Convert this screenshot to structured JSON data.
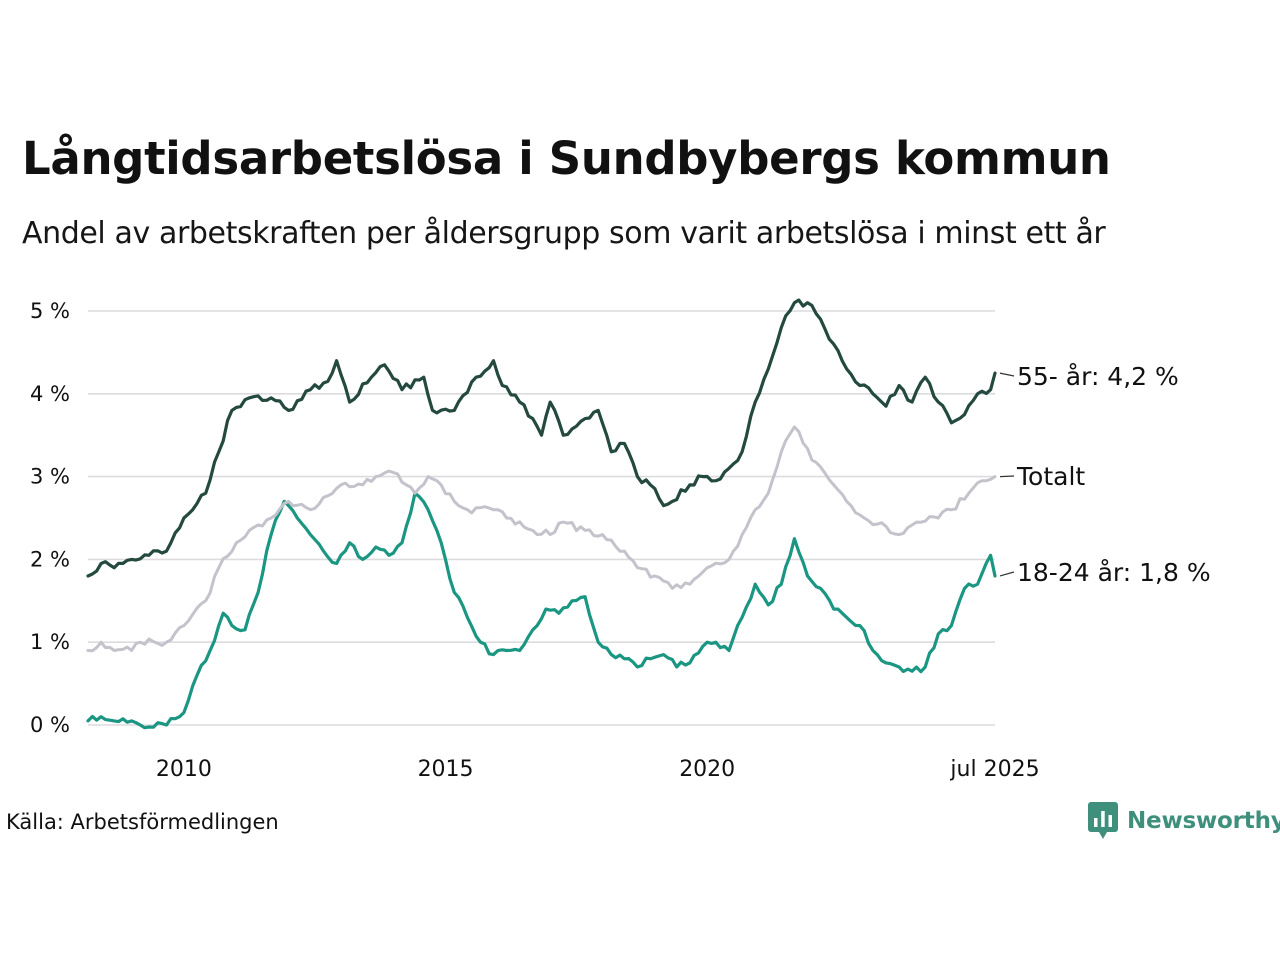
{
  "title": "Långtidsarbetslösa i Sundbybergs kommun",
  "subtitle": "Andel av arbetskraften per åldersgrupp som varit arbetslösa i minst ett år",
  "source": "Källa: Arbetsförmedlingen",
  "brand": {
    "name": "Newsworthy",
    "color": "#3f8f7d"
  },
  "chart_data": {
    "type": "line",
    "title": "Långtidsarbetslösa i Sundbybergs kommun",
    "subtitle": "Andel av arbetskraften per åldersgrupp som varit arbetslösa i minst ett år",
    "xlabel": "",
    "ylabel": "",
    "x_range": [
      "2008-03",
      "2025-07"
    ],
    "ylim": [
      0,
      5.2
    ],
    "y_ticks": [
      0,
      1,
      2,
      3,
      4,
      5
    ],
    "y_tick_labels": [
      "0 %",
      "1 %",
      "2 %",
      "3 %",
      "4 %",
      "5 %"
    ],
    "x_ticks": [
      "2010-01",
      "2015-01",
      "2020-01",
      "2025-07"
    ],
    "x_tick_labels": [
      "2010",
      "2015",
      "2020",
      "jul 2025"
    ],
    "grid": "horizontal",
    "legend": "direct labels at line ends (right)",
    "series": [
      {
        "name": "55- år",
        "end_label": "55- år: 4,2 %",
        "color": "#24493f",
        "points": [
          [
            "2008-03",
            1.8
          ],
          [
            "2008-06",
            1.95
          ],
          [
            "2008-09",
            1.9
          ],
          [
            "2009-01",
            2.0
          ],
          [
            "2009-05",
            2.05
          ],
          [
            "2009-09",
            2.1
          ],
          [
            "2010-01",
            2.5
          ],
          [
            "2010-03",
            2.6
          ],
          [
            "2010-06",
            2.8
          ],
          [
            "2010-09",
            3.3
          ],
          [
            "2010-12",
            3.8
          ],
          [
            "2011-04",
            3.95
          ],
          [
            "2011-09",
            3.95
          ],
          [
            "2012-01",
            3.8
          ],
          [
            "2012-06",
            4.05
          ],
          [
            "2012-10",
            4.15
          ],
          [
            "2012-12",
            4.4
          ],
          [
            "2013-03",
            3.9
          ],
          [
            "2013-08",
            4.2
          ],
          [
            "2013-11",
            4.35
          ],
          [
            "2014-03",
            4.05
          ],
          [
            "2014-08",
            4.2
          ],
          [
            "2014-10",
            3.8
          ],
          [
            "2015-03",
            3.8
          ],
          [
            "2015-08",
            4.2
          ],
          [
            "2015-12",
            4.4
          ],
          [
            "2016-02",
            4.1
          ],
          [
            "2016-06",
            3.9
          ],
          [
            "2016-09",
            3.7
          ],
          [
            "2016-11",
            3.5
          ],
          [
            "2017-01",
            3.9
          ],
          [
            "2017-04",
            3.5
          ],
          [
            "2017-09",
            3.7
          ],
          [
            "2017-12",
            3.8
          ],
          [
            "2018-03",
            3.3
          ],
          [
            "2018-06",
            3.4
          ],
          [
            "2018-09",
            3.0
          ],
          [
            "2018-12",
            2.9
          ],
          [
            "2019-03",
            2.65
          ],
          [
            "2019-05",
            2.7
          ],
          [
            "2019-09",
            2.9
          ],
          [
            "2019-12",
            3.0
          ],
          [
            "2020-03",
            2.95
          ],
          [
            "2020-06",
            3.1
          ],
          [
            "2020-09",
            3.3
          ],
          [
            "2020-12",
            3.9
          ],
          [
            "2021-03",
            4.3
          ],
          [
            "2021-06",
            4.8
          ],
          [
            "2021-09",
            5.1
          ],
          [
            "2021-12",
            5.1
          ],
          [
            "2022-03",
            4.9
          ],
          [
            "2022-06",
            4.6
          ],
          [
            "2022-09",
            4.3
          ],
          [
            "2022-12",
            4.1
          ],
          [
            "2023-03",
            4.0
          ],
          [
            "2023-06",
            3.85
          ],
          [
            "2023-09",
            4.1
          ],
          [
            "2023-12",
            3.9
          ],
          [
            "2024-03",
            4.2
          ],
          [
            "2024-06",
            3.9
          ],
          [
            "2024-09",
            3.65
          ],
          [
            "2024-12",
            3.75
          ],
          [
            "2025-03",
            4.0
          ],
          [
            "2025-06",
            4.05
          ],
          [
            "2025-07",
            4.25
          ]
        ]
      },
      {
        "name": "Totalt",
        "end_label": "Totalt",
        "color": "#c4c3cc",
        "points": [
          [
            "2008-03",
            0.9
          ],
          [
            "2008-06",
            1.0
          ],
          [
            "2008-09",
            0.9
          ],
          [
            "2009-01",
            0.9
          ],
          [
            "2009-03",
            1.0
          ],
          [
            "2009-09",
            1.0
          ],
          [
            "2010-01",
            1.2
          ],
          [
            "2010-06",
            1.5
          ],
          [
            "2010-09",
            1.9
          ],
          [
            "2011-01",
            2.2
          ],
          [
            "2011-04",
            2.35
          ],
          [
            "2011-09",
            2.5
          ],
          [
            "2012-01",
            2.7
          ],
          [
            "2012-06",
            2.6
          ],
          [
            "2012-09",
            2.75
          ],
          [
            "2013-01",
            2.9
          ],
          [
            "2013-06",
            2.9
          ],
          [
            "2013-09",
            3.0
          ],
          [
            "2014-01",
            3.05
          ],
          [
            "2014-04",
            2.9
          ],
          [
            "2014-06",
            2.8
          ],
          [
            "2014-09",
            3.0
          ],
          [
            "2014-12",
            2.9
          ],
          [
            "2015-03",
            2.7
          ],
          [
            "2015-06",
            2.6
          ],
          [
            "2015-12",
            2.6
          ],
          [
            "2016-03",
            2.5
          ],
          [
            "2016-09",
            2.35
          ],
          [
            "2017-01",
            2.3
          ],
          [
            "2017-04",
            2.45
          ],
          [
            "2017-09",
            2.35
          ],
          [
            "2018-01",
            2.3
          ],
          [
            "2018-06",
            2.1
          ],
          [
            "2018-09",
            1.9
          ],
          [
            "2019-01",
            1.8
          ],
          [
            "2019-05",
            1.65
          ],
          [
            "2019-09",
            1.7
          ],
          [
            "2020-01",
            1.9
          ],
          [
            "2020-06",
            2.0
          ],
          [
            "2020-09",
            2.3
          ],
          [
            "2020-12",
            2.6
          ],
          [
            "2021-03",
            2.8
          ],
          [
            "2021-06",
            3.3
          ],
          [
            "2021-09",
            3.6
          ],
          [
            "2022-01",
            3.2
          ],
          [
            "2022-06",
            2.9
          ],
          [
            "2022-09",
            2.7
          ],
          [
            "2023-01",
            2.5
          ],
          [
            "2023-06",
            2.4
          ],
          [
            "2023-09",
            2.3
          ],
          [
            "2024-01",
            2.45
          ],
          [
            "2024-06",
            2.5
          ],
          [
            "2024-09",
            2.6
          ],
          [
            "2025-01",
            2.8
          ],
          [
            "2025-04",
            2.95
          ],
          [
            "2025-07",
            3.0
          ]
        ]
      },
      {
        "name": "18-24 år",
        "end_label": "18-24 år: 1,8 %",
        "color": "#1a9683",
        "points": [
          [
            "2008-03",
            0.05
          ],
          [
            "2008-06",
            0.1
          ],
          [
            "2008-09",
            0.05
          ],
          [
            "2009-01",
            0.05
          ],
          [
            "2009-03",
            0.0
          ],
          [
            "2009-09",
            0.0
          ],
          [
            "2010-01",
            0.15
          ],
          [
            "2010-04",
            0.6
          ],
          [
            "2010-07",
            0.9
          ],
          [
            "2010-10",
            1.35
          ],
          [
            "2010-12",
            1.2
          ],
          [
            "2011-03",
            1.15
          ],
          [
            "2011-06",
            1.6
          ],
          [
            "2011-09",
            2.3
          ],
          [
            "2011-12",
            2.7
          ],
          [
            "2012-03",
            2.5
          ],
          [
            "2012-06",
            2.3
          ],
          [
            "2012-09",
            2.1
          ],
          [
            "2012-12",
            1.95
          ],
          [
            "2013-03",
            2.2
          ],
          [
            "2013-06",
            2.0
          ],
          [
            "2013-09",
            2.15
          ],
          [
            "2013-12",
            2.05
          ],
          [
            "2014-03",
            2.2
          ],
          [
            "2014-06",
            2.8
          ],
          [
            "2014-09",
            2.6
          ],
          [
            "2014-12",
            2.2
          ],
          [
            "2015-03",
            1.6
          ],
          [
            "2015-06",
            1.3
          ],
          [
            "2015-09",
            1.0
          ],
          [
            "2015-12",
            0.85
          ],
          [
            "2016-03",
            0.9
          ],
          [
            "2016-06",
            0.9
          ],
          [
            "2016-09",
            1.15
          ],
          [
            "2016-12",
            1.4
          ],
          [
            "2017-03",
            1.35
          ],
          [
            "2017-06",
            1.5
          ],
          [
            "2017-09",
            1.55
          ],
          [
            "2017-12",
            1.0
          ],
          [
            "2018-03",
            0.85
          ],
          [
            "2018-06",
            0.8
          ],
          [
            "2018-09",
            0.7
          ],
          [
            "2018-12",
            0.8
          ],
          [
            "2019-03",
            0.85
          ],
          [
            "2019-06",
            0.7
          ],
          [
            "2019-09",
            0.75
          ],
          [
            "2019-12",
            0.95
          ],
          [
            "2020-03",
            1.0
          ],
          [
            "2020-06",
            0.9
          ],
          [
            "2020-09",
            1.3
          ],
          [
            "2020-12",
            1.7
          ],
          [
            "2021-03",
            1.45
          ],
          [
            "2021-06",
            1.7
          ],
          [
            "2021-09",
            2.25
          ],
          [
            "2021-12",
            1.8
          ],
          [
            "2022-03",
            1.65
          ],
          [
            "2022-06",
            1.4
          ],
          [
            "2022-09",
            1.3
          ],
          [
            "2022-12",
            1.2
          ],
          [
            "2023-03",
            0.9
          ],
          [
            "2023-06",
            0.75
          ],
          [
            "2023-09",
            0.7
          ],
          [
            "2023-12",
            0.65
          ],
          [
            "2024-03",
            0.7
          ],
          [
            "2024-06",
            1.1
          ],
          [
            "2024-09",
            1.2
          ],
          [
            "2024-12",
            1.65
          ],
          [
            "2025-03",
            1.7
          ],
          [
            "2025-06",
            2.05
          ],
          [
            "2025-07",
            1.8
          ]
        ]
      }
    ]
  }
}
